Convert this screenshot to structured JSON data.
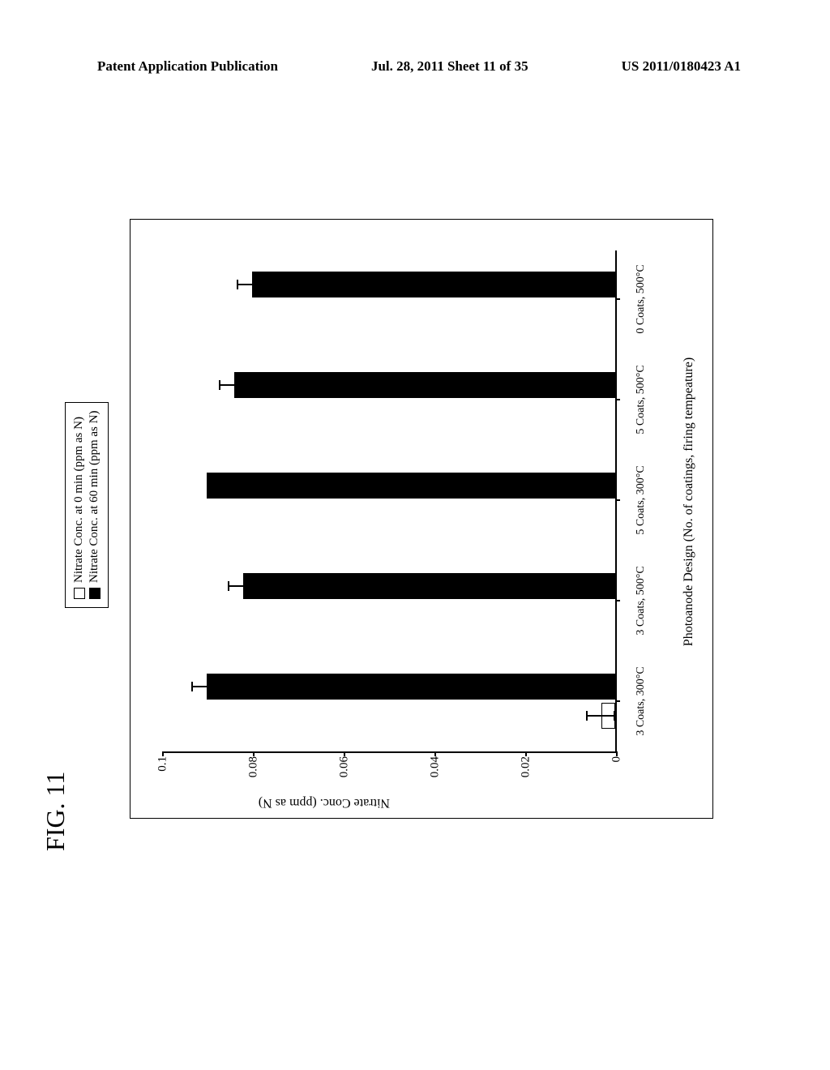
{
  "header": {
    "left": "Patent Application Publication",
    "center": "Jul. 28, 2011  Sheet 11 of 35",
    "right": "US 2011/0180423 A1"
  },
  "figure": {
    "label": "FIG. 11",
    "legend": {
      "series_a": "Nitrate Conc. at 0 min (ppm as N)",
      "series_b": "Nitrate Conc. at 60 min (ppm as N)"
    },
    "chart": {
      "type": "bar",
      "yaxis_label": "Nitrate Conc. (ppm as N)",
      "xaxis_label": "Photoanode Design (No. of coatings, firing tempeature)",
      "ylim": [
        0,
        0.1
      ],
      "ytick_step": 0.02,
      "yticks": [
        "0",
        "0.02",
        "0.04",
        "0.06",
        "0.08",
        "0.1"
      ],
      "background_color": "#ffffff",
      "border_color": "#000000",
      "bar_color_open": "#ffffff",
      "bar_color_filled": "#000000",
      "categories": [
        {
          "label": "3 Coats, 300°C",
          "a": 0.003,
          "a_err": 0.003,
          "b": 0.09,
          "b_err": 0.003
        },
        {
          "label": "3 Coats, 500°C",
          "a": 0.0,
          "a_err": 0.0,
          "b": 0.082,
          "b_err": 0.003
        },
        {
          "label": "5 Coats, 300°C",
          "a": 0.0,
          "a_err": 0.0,
          "b": 0.09,
          "b_err": 0.0
        },
        {
          "label": "5 Coats, 500°C",
          "a": 0.0,
          "a_err": 0.0,
          "b": 0.084,
          "b_err": 0.003
        },
        {
          "label": "0 Coats, 500°C",
          "a": 0.0,
          "a_err": 0.0,
          "b": 0.08,
          "b_err": 0.003
        }
      ]
    }
  }
}
